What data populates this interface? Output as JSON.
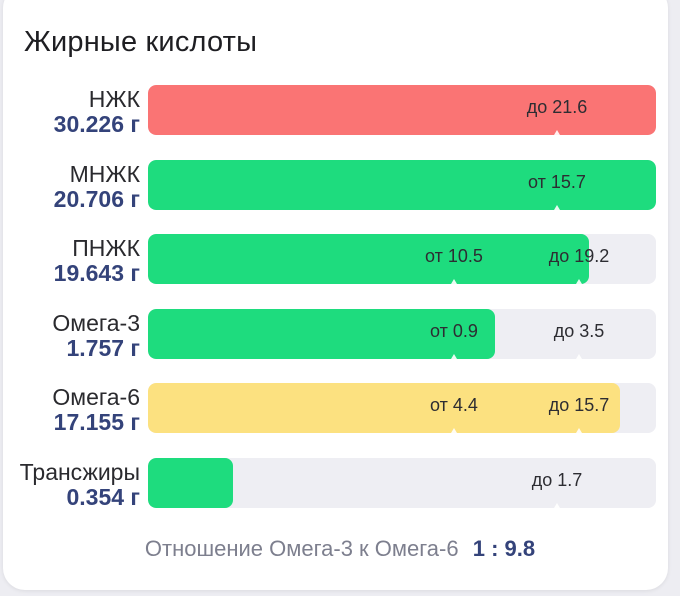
{
  "title": "Жирные кислоты",
  "colors": {
    "over_limit": "#fa7474",
    "in_range": "#1edc7e",
    "warning": "#fce180",
    "track": "#eeeef3",
    "amount_text": "#34437a"
  },
  "rows": [
    {
      "label": "НЖК",
      "amount": "30.226 г",
      "fill_fraction": 1.0,
      "color": "#fa7474",
      "markers": [
        {
          "text": "до 21.6",
          "pos": 0.805
        }
      ]
    },
    {
      "label": "МНЖК",
      "amount": "20.706 г",
      "fill_fraction": 1.0,
      "color": "#1edc7e",
      "markers": [
        {
          "text": "от 15.7",
          "pos": 0.805
        }
      ]
    },
    {
      "label": "ПНЖК",
      "amount": "19.643 г",
      "fill_fraction": 0.868,
      "color": "#1edc7e",
      "markers": [
        {
          "text": "от 10.5",
          "pos": 0.603
        },
        {
          "text": "до 19.2",
          "pos": 0.848
        }
      ]
    },
    {
      "label": "Омега-3",
      "amount": "1.757 г",
      "fill_fraction": 0.683,
      "color": "#1edc7e",
      "markers": [
        {
          "text": "от 0.9",
          "pos": 0.603
        },
        {
          "text": "до 3.5",
          "pos": 0.848
        }
      ]
    },
    {
      "label": "Омега-6",
      "amount": "17.155 г",
      "fill_fraction": 0.929,
      "color": "#fce180",
      "markers": [
        {
          "text": "от 4.4",
          "pos": 0.603
        },
        {
          "text": "до 15.7",
          "pos": 0.848
        }
      ]
    },
    {
      "label": "Трансжиры",
      "amount": "0.354 г",
      "fill_fraction": 0.167,
      "color": "#1edc7e",
      "markers": [
        {
          "text": "до 1.7",
          "pos": 0.805
        }
      ]
    }
  ],
  "ratio": {
    "label": "Отношение Омега-3 к Омега-6",
    "value": "1 : 9.8"
  }
}
